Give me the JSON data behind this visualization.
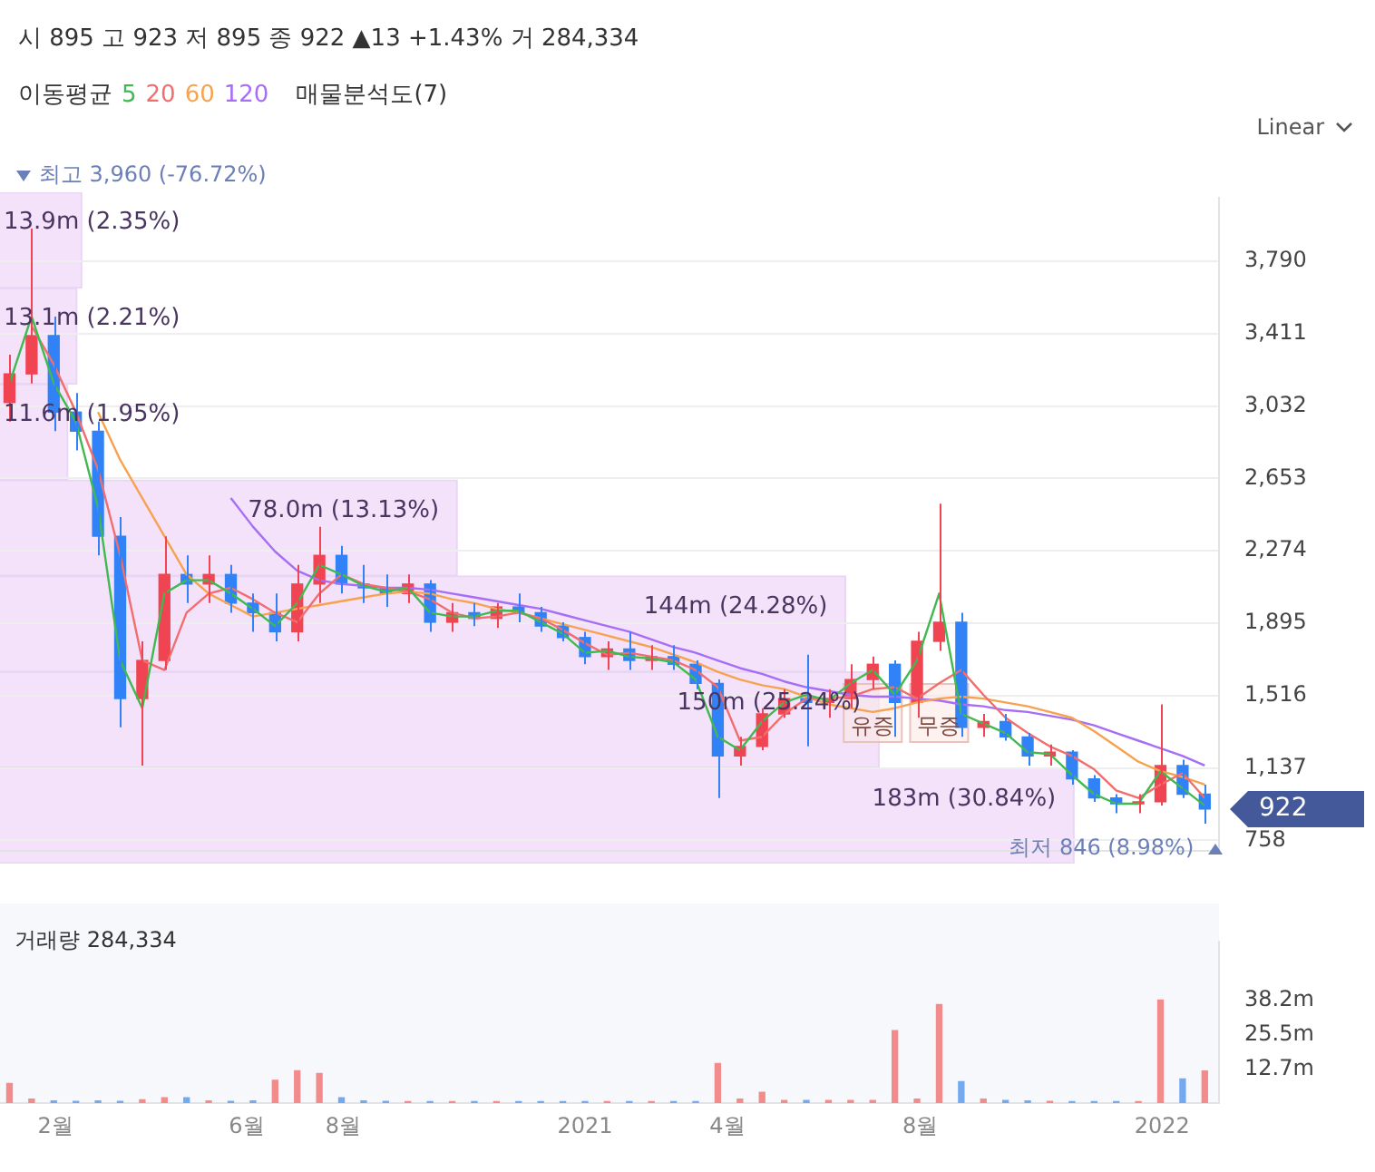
{
  "chart_data": [
    {
      "type": "candlestick",
      "title": "시 895 고 923 저 895 종 922 ▲13 +1.43% 거 284,334",
      "legend_title": "이동평균",
      "legend": "top left",
      "grid": "y",
      "tick_labels": "y",
      "x": [
        "2020-01-03",
        "2020-01-17",
        "2020-01-31",
        "2020-02-14",
        "2020-02-28",
        "2020-03-13",
        "2020-03-27",
        "2020-04-10",
        "2020-04-24",
        "2020-05-08",
        "2020-05-22",
        "2020-06-05",
        "2020-06-19",
        "2020-07-03",
        "2020-07-17",
        "2020-07-31",
        "2020-08-14",
        "2020-08-28",
        "2020-09-11",
        "2020-09-25",
        "2020-10-09",
        "2020-10-23",
        "2020-11-06",
        "2020-11-20",
        "2020-12-04",
        "2020-12-18",
        "2021-01-01",
        "2021-01-15",
        "2021-01-29",
        "2021-02-12",
        "2021-02-26",
        "2021-03-12",
        "2021-03-26",
        "2021-04-09",
        "2021-04-23",
        "2021-05-07",
        "2021-05-21",
        "2021-06-04",
        "2021-06-18",
        "2021-07-02",
        "2021-07-16",
        "2021-07-30",
        "2021-08-13",
        "2021-08-27",
        "2021-09-10",
        "2021-09-24",
        "2021-10-08",
        "2021-10-22",
        "2021-11-05",
        "2021-11-19",
        "2021-12-03",
        "2021-12-17",
        "2021-12-31",
        "2022-01-14",
        "2022-01-28"
      ],
      "ohlc": [
        [
          3050,
          3300,
          2950,
          3200
        ],
        [
          3200,
          3960,
          3150,
          3400
        ],
        [
          3400,
          3500,
          2900,
          3000
        ],
        [
          3000,
          3100,
          2800,
          2900
        ],
        [
          2900,
          2950,
          2250,
          2350
        ],
        [
          2350,
          2450,
          1350,
          1500
        ],
        [
          1500,
          1800,
          1150,
          1700
        ],
        [
          1700,
          2350,
          1650,
          2150
        ],
        [
          2150,
          2250,
          2000,
          2100
        ],
        [
          2100,
          2250,
          2000,
          2150
        ],
        [
          2150,
          2200,
          1950,
          2000
        ],
        [
          2000,
          2050,
          1850,
          1950
        ],
        [
          1950,
          2050,
          1800,
          1850
        ],
        [
          1850,
          2200,
          1800,
          2100
        ],
        [
          2100,
          2400,
          2000,
          2250
        ],
        [
          2250,
          2300,
          2050,
          2100
        ],
        [
          2100,
          2200,
          2000,
          2080
        ],
        [
          2080,
          2150,
          1980,
          2050
        ],
        [
          2050,
          2150,
          2000,
          2100
        ],
        [
          2100,
          2120,
          1850,
          1900
        ],
        [
          1900,
          2000,
          1850,
          1950
        ],
        [
          1950,
          2000,
          1880,
          1920
        ],
        [
          1920,
          2000,
          1870,
          1980
        ],
        [
          1980,
          2050,
          1900,
          1950
        ],
        [
          1950,
          1980,
          1850,
          1880
        ],
        [
          1880,
          1900,
          1800,
          1820
        ],
        [
          1820,
          1850,
          1680,
          1720
        ],
        [
          1720,
          1800,
          1650,
          1760
        ],
        [
          1760,
          1850,
          1650,
          1700
        ],
        [
          1700,
          1780,
          1650,
          1720
        ],
        [
          1720,
          1780,
          1650,
          1680
        ],
        [
          1680,
          1700,
          1550,
          1580
        ],
        [
          1580,
          1600,
          980,
          1200
        ],
        [
          1200,
          1300,
          1150,
          1250
        ],
        [
          1250,
          1450,
          1230,
          1420
        ],
        [
          1420,
          1550,
          1400,
          1500
        ],
        [
          1500,
          1730,
          1250,
          1480
        ],
        [
          1480,
          1550,
          1400,
          1500
        ],
        [
          1500,
          1680,
          1450,
          1600
        ],
        [
          1600,
          1720,
          1550,
          1680
        ],
        [
          1680,
          1700,
          1300,
          1480
        ],
        [
          1480,
          1850,
          1400,
          1800
        ],
        [
          1800,
          2520,
          1750,
          1900
        ],
        [
          1900,
          1950,
          1300,
          1350
        ],
        [
          1350,
          1420,
          1300,
          1380
        ],
        [
          1380,
          1420,
          1280,
          1300
        ],
        [
          1300,
          1320,
          1150,
          1200
        ],
        [
          1200,
          1260,
          1150,
          1220
        ],
        [
          1220,
          1230,
          1050,
          1080
        ],
        [
          1080,
          1100,
          960,
          980
        ],
        [
          980,
          1000,
          900,
          950
        ],
        [
          950,
          1000,
          900,
          960
        ],
        [
          960,
          1470,
          940,
          1150
        ],
        [
          1150,
          1180,
          980,
          1000
        ],
        [
          1000,
          1050,
          846,
          922
        ]
      ],
      "colors": [
        "#f04452",
        "#f04452",
        "#3182f6",
        "#3182f6",
        "#3182f6",
        "#3182f6",
        "#f04452",
        "#f04452",
        "#3182f6",
        "#f04452",
        "#3182f6",
        "#3182f6",
        "#3182f6",
        "#f04452",
        "#f04452",
        "#3182f6",
        "#3182f6",
        "#3182f6",
        "#f04452",
        "#3182f6",
        "#f04452",
        "#3182f6",
        "#f04452",
        "#3182f6",
        "#3182f6",
        "#3182f6",
        "#3182f6",
        "#f04452",
        "#3182f6",
        "#f04452",
        "#3182f6",
        "#3182f6",
        "#3182f6",
        "#f04452",
        "#f04452",
        "#f04452",
        "#3182f6",
        "#f04452",
        "#f04452",
        "#f04452",
        "#3182f6",
        "#f04452",
        "#f04452",
        "#3182f6",
        "#f04452",
        "#3182f6",
        "#3182f6",
        "#f04452",
        "#3182f6",
        "#3182f6",
        "#3182f6",
        "#f04452",
        "#f04452",
        "#3182f6",
        "#3182f6"
      ],
      "series": [
        {
          "type": "line",
          "name": "5",
          "color": "#3fb950",
          "values": [
            3150,
            3500,
            3150,
            2950,
            2500,
            1700,
            1450,
            2050,
            2120,
            2120,
            2050,
            1970,
            1880,
            2000,
            2200,
            2150,
            2090,
            2060,
            2080,
            1950,
            1930,
            1930,
            1960,
            1960,
            1900,
            1840,
            1740,
            1750,
            1720,
            1710,
            1690,
            1600,
            1300,
            1230,
            1380,
            1480,
            1520,
            1490,
            1580,
            1650,
            1520,
            1700,
            2050,
            1420,
            1370,
            1320,
            1220,
            1210,
            1100,
            1000,
            950,
            950,
            1120,
            1030,
            940
          ]
        },
        {
          "type": "line",
          "name": "20",
          "color": "#f26d6d",
          "values": [
            null,
            3450,
            3250,
            3000,
            2700,
            2250,
            1700,
            1650,
            1950,
            2050,
            2080,
            2020,
            1950,
            1900,
            2050,
            2150,
            2100,
            2080,
            2060,
            2020,
            1950,
            1920,
            1930,
            1950,
            1920,
            1860,
            1790,
            1730,
            1740,
            1720,
            1700,
            1650,
            1560,
            1280,
            1300,
            1420,
            1500,
            1500,
            1510,
            1550,
            1560,
            1500,
            1580,
            1650,
            1520,
            1400,
            1320,
            1250,
            1200,
            1130,
            1020,
            980,
            1050,
            1110,
            980
          ]
        },
        {
          "type": "line",
          "name": "60",
          "color": "#f7a24f",
          "values": [
            null,
            null,
            null,
            null,
            3000,
            2750,
            2550,
            2350,
            2150,
            2050,
            1990,
            1930,
            1950,
            1970,
            1990,
            2010,
            2030,
            2050,
            2060,
            2050,
            2020,
            2000,
            1970,
            1950,
            1920,
            1890,
            1860,
            1830,
            1800,
            1770,
            1730,
            1690,
            1640,
            1600,
            1570,
            1550,
            1510,
            1470,
            1450,
            1430,
            1450,
            1480,
            1500,
            1510,
            1500,
            1480,
            1460,
            1430,
            1400,
            1330,
            1250,
            1170,
            1120,
            1090,
            1050
          ]
        },
        {
          "type": "line",
          "name": "120",
          "color": "#a66df5",
          "values": [
            null,
            null,
            null,
            null,
            null,
            null,
            null,
            null,
            null,
            null,
            2550,
            2400,
            2270,
            2170,
            2120,
            2100,
            2090,
            2080,
            2080,
            2070,
            2050,
            2030,
            2010,
            1990,
            1970,
            1940,
            1910,
            1880,
            1850,
            1810,
            1770,
            1740,
            1700,
            1660,
            1630,
            1590,
            1560,
            1540,
            1520,
            1510,
            1510,
            1500,
            1490,
            1470,
            1460,
            1440,
            1430,
            1410,
            1390,
            1360,
            1320,
            1280,
            1240,
            1200,
            1150
          ]
        }
      ],
      "xlim": [
        "2019-12-28",
        "2022-02-06"
      ],
      "ylim": [
        705,
        4120
      ],
      "yticks": [
        {
          "value": 758,
          "label": "758"
        },
        {
          "value": 1137,
          "label": "1,137"
        },
        {
          "value": 1516,
          "label": "1,516"
        },
        {
          "value": 1895,
          "label": "1,895"
        },
        {
          "value": 2274,
          "label": "2,274"
        },
        {
          "value": 2653,
          "label": "2,653"
        },
        {
          "value": 3032,
          "label": "3,032"
        },
        {
          "value": 3411,
          "label": "3,411"
        },
        {
          "value": 3790,
          "label": "3,790"
        }
      ],
      "annotations": [
        "Linear",
        "최고 3,960 (-76.72%)",
        "최저 846 (8.98%)",
        "922",
        {
          "text": "유증",
          "x": "2021-07-02",
          "y": 1520
        },
        {
          "text": "무증",
          "x": "2021-08-13",
          "y": 1520
        }
      ]
    },
    {
      "type": "bar",
      "orientation": "horizontal",
      "title": "매물분석도(7)",
      "categories": [
        null,
        null,
        null,
        null,
        null,
        null,
        null
      ],
      "values": [
        2.35,
        2.21,
        1.95,
        13.13,
        24.28,
        25.24,
        30.84
      ],
      "color": "#f3e2fa",
      "tick_labels": false,
      "value_labels": [
        "13.9m (2.35%)",
        "13.1m (2.21%)",
        "11.6m (1.95%)",
        "78.0m (13.13%)",
        "144m (24.28%)",
        "150m (25.24%)",
        "183m (30.84%)"
      ]
    },
    {
      "type": "bar",
      "title": "거래량 284,334",
      "tick_labels": "xy",
      "x": [
        "2020-01-03",
        "2020-01-17",
        "2020-01-31",
        "2020-02-14",
        "2020-02-28",
        "2020-03-13",
        "2020-03-27",
        "2020-04-10",
        "2020-04-24",
        "2020-05-08",
        "2020-05-22",
        "2020-06-05",
        "2020-06-19",
        "2020-07-03",
        "2020-07-17",
        "2020-07-31",
        "2020-08-14",
        "2020-08-28",
        "2020-09-11",
        "2020-09-25",
        "2020-10-09",
        "2020-10-23",
        "2020-11-06",
        "2020-11-20",
        "2020-12-04",
        "2020-12-18",
        "2021-01-01",
        "2021-01-15",
        "2021-01-29",
        "2021-02-12",
        "2021-02-26",
        "2021-03-12",
        "2021-03-26",
        "2021-04-09",
        "2021-04-23",
        "2021-05-07",
        "2021-05-21",
        "2021-06-04",
        "2021-06-18",
        "2021-07-02",
        "2021-07-16",
        "2021-07-30",
        "2021-08-13",
        "2021-08-27",
        "2021-09-10",
        "2021-09-24",
        "2021-10-08",
        "2021-10-22",
        "2021-11-05",
        "2021-11-19",
        "2021-12-03",
        "2021-12-17",
        "2021-12-31",
        "2022-01-14",
        "2022-01-28"
      ],
      "values": [
        7.3,
        1.5,
        0.8,
        0.6,
        0.8,
        0.6,
        1.2,
        2.0,
        2.0,
        0.8,
        0.6,
        0.8,
        8.5,
        12,
        11,
        2,
        0.8,
        0.6,
        0.5,
        0.5,
        0.5,
        0.5,
        0.5,
        0.5,
        0.5,
        0.5,
        0.5,
        0.5,
        0.5,
        0.5,
        0.5,
        0.5,
        14.7,
        1.5,
        4,
        1,
        1,
        1,
        1,
        1,
        27,
        1.5,
        36.7,
        8,
        1.5,
        1,
        0.8,
        0.6,
        0.5,
        0.5,
        0.5,
        0.5,
        38.4,
        9,
        11.9
      ],
      "colors": [
        "#f28b8b",
        "#f28b8b",
        "#74a9f0",
        "#74a9f0",
        "#74a9f0",
        "#74a9f0",
        "#f28b8b",
        "#f28b8b",
        "#74a9f0",
        "#f28b8b",
        "#74a9f0",
        "#74a9f0",
        "#f28b8b",
        "#f28b8b",
        "#f28b8b",
        "#74a9f0",
        "#74a9f0",
        "#74a9f0",
        "#f28b8b",
        "#74a9f0",
        "#f28b8b",
        "#74a9f0",
        "#f28b8b",
        "#74a9f0",
        "#74a9f0",
        "#74a9f0",
        "#74a9f0",
        "#f28b8b",
        "#74a9f0",
        "#f28b8b",
        "#74a9f0",
        "#74a9f0",
        "#f28b8b",
        "#f28b8b",
        "#f28b8b",
        "#f28b8b",
        "#74a9f0",
        "#f28b8b",
        "#f28b8b",
        "#f28b8b",
        "#f28b8b",
        "#f28b8b",
        "#f28b8b",
        "#74a9f0",
        "#f28b8b",
        "#74a9f0",
        "#74a9f0",
        "#f28b8b",
        "#74a9f0",
        "#74a9f0",
        "#74a9f0",
        "#f28b8b",
        "#f28b8b",
        "#74a9f0",
        "#f28b8b"
      ],
      "xlim": [
        "2019-12-28",
        "2022-02-06"
      ],
      "ylim": [
        0,
        60
      ],
      "xticks": [
        {
          "value": "2020-02-01",
          "label": "2월"
        },
        {
          "value": "2020-06-01",
          "label": "6월"
        },
        {
          "value": "2020-08-01",
          "label": "8월"
        },
        {
          "value": "2021-01-01",
          "label": "2021"
        },
        {
          "value": "2021-04-01",
          "label": "4월"
        },
        {
          "value": "2021-08-01",
          "label": "8월"
        },
        {
          "value": "2022-01-01",
          "label": "2022"
        }
      ],
      "yticks": [
        {
          "value": 12.7,
          "label": "12.7m"
        },
        {
          "value": 25.5,
          "label": "25.5m"
        },
        {
          "value": 38.2,
          "label": "38.2m"
        }
      ]
    }
  ]
}
